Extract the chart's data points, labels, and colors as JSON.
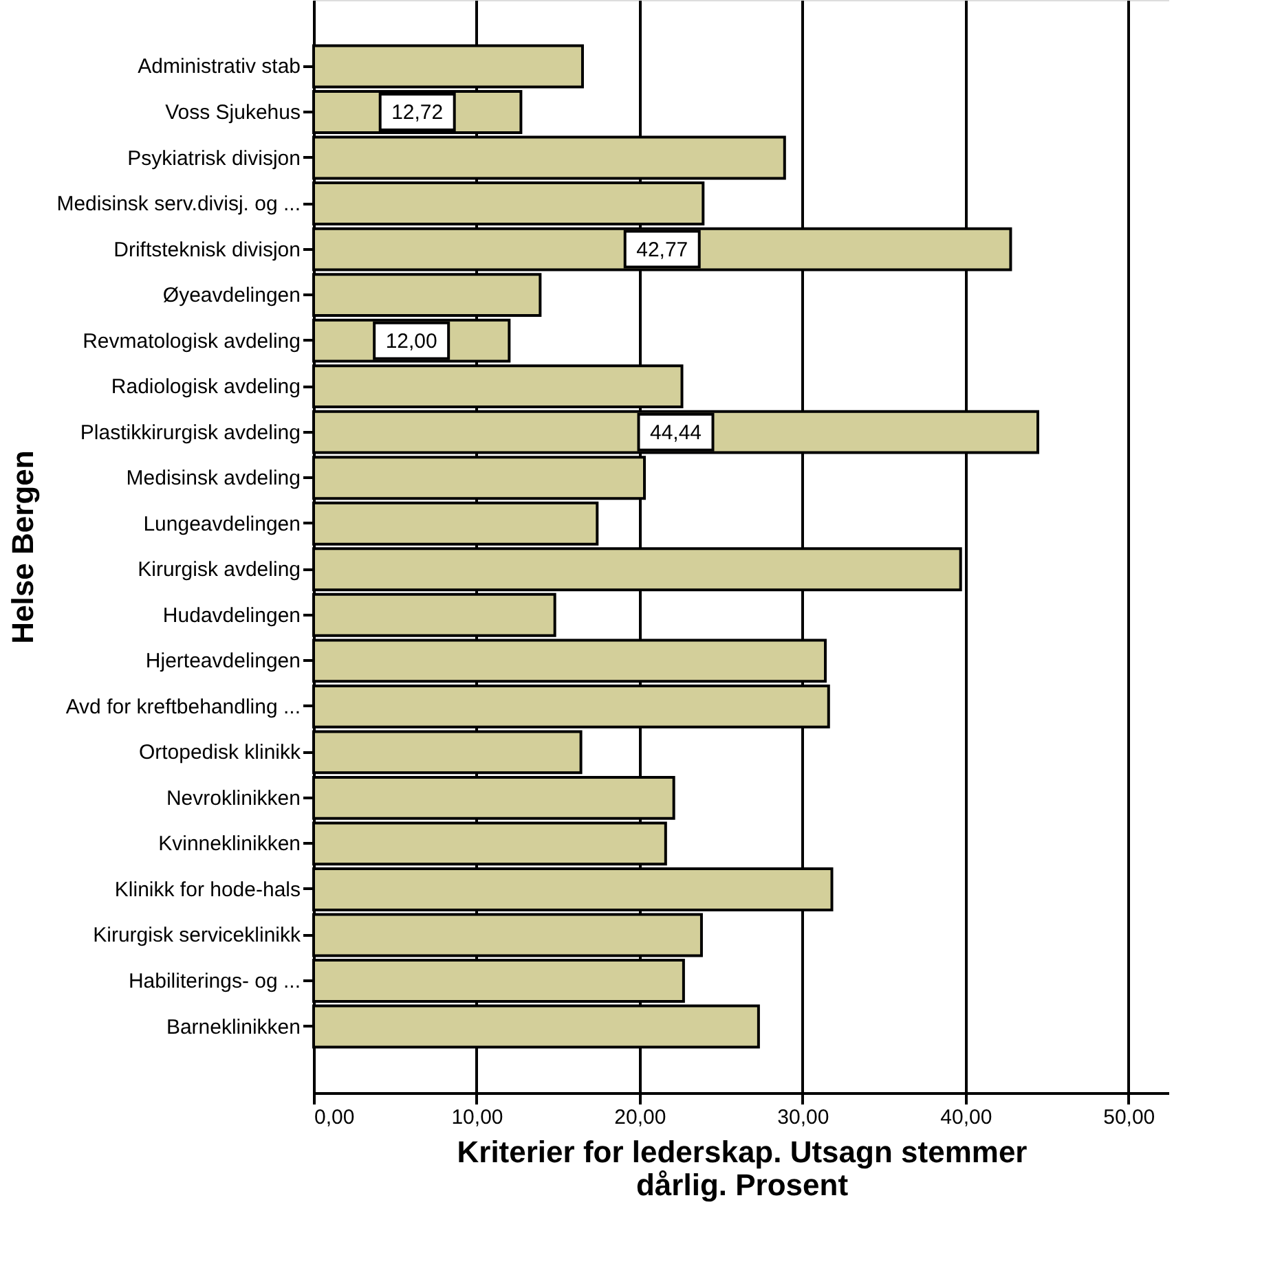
{
  "chart_data": {
    "type": "bar",
    "orientation": "horizontal",
    "xlabel": "Kriterier for lederskap. Utsagn stemmer dårlig. Prosent",
    "ylabel": "Helse Bergen",
    "categories": [
      "Administrativ stab",
      "Voss Sjukehus",
      "Psykiatrisk divisjon",
      "Medisinsk serv.divisj. og ...",
      "Driftsteknisk divisjon",
      "Øyeavdelingen",
      "Revmatologisk avdeling",
      "Radiologisk avdeling",
      "Plastikkirurgisk avdeling",
      "Medisinsk avdeling",
      "Lungeavdelingen",
      "Kirurgisk avdeling",
      "Hudavdelingen",
      "Hjerteavdelingen",
      "Avd for kreftbehandling ...",
      "Ortopedisk klinikk",
      "Nevroklinikken",
      "Kvinneklinikken",
      "Klinikk for hode-hals",
      "Kirurgisk serviceklinikk",
      "Habiliterings- og ...",
      "Barneklinikken"
    ],
    "values": [
      16.5,
      12.72,
      28.9,
      23.9,
      42.77,
      13.9,
      12.0,
      22.6,
      44.44,
      20.3,
      17.4,
      39.7,
      14.8,
      31.4,
      31.6,
      16.4,
      22.1,
      21.6,
      31.8,
      23.8,
      22.7,
      27.3
    ],
    "value_labels": [
      null,
      "12,72",
      null,
      null,
      "42,77",
      null,
      "12,00",
      null,
      "44,44",
      null,
      null,
      null,
      null,
      null,
      null,
      null,
      null,
      null,
      null,
      null,
      null,
      null
    ],
    "color": "#d3cf9a",
    "xlim": [
      0,
      52.5
    ],
    "xticks": [
      {
        "value": 0,
        "label": "0,00"
      },
      {
        "value": 10,
        "label": "10,00"
      },
      {
        "value": 20,
        "label": "20,00"
      },
      {
        "value": 30,
        "label": "30,00"
      },
      {
        "value": 40,
        "label": "40,00"
      },
      {
        "value": 50,
        "label": "50,00"
      }
    ],
    "grid": "x"
  }
}
